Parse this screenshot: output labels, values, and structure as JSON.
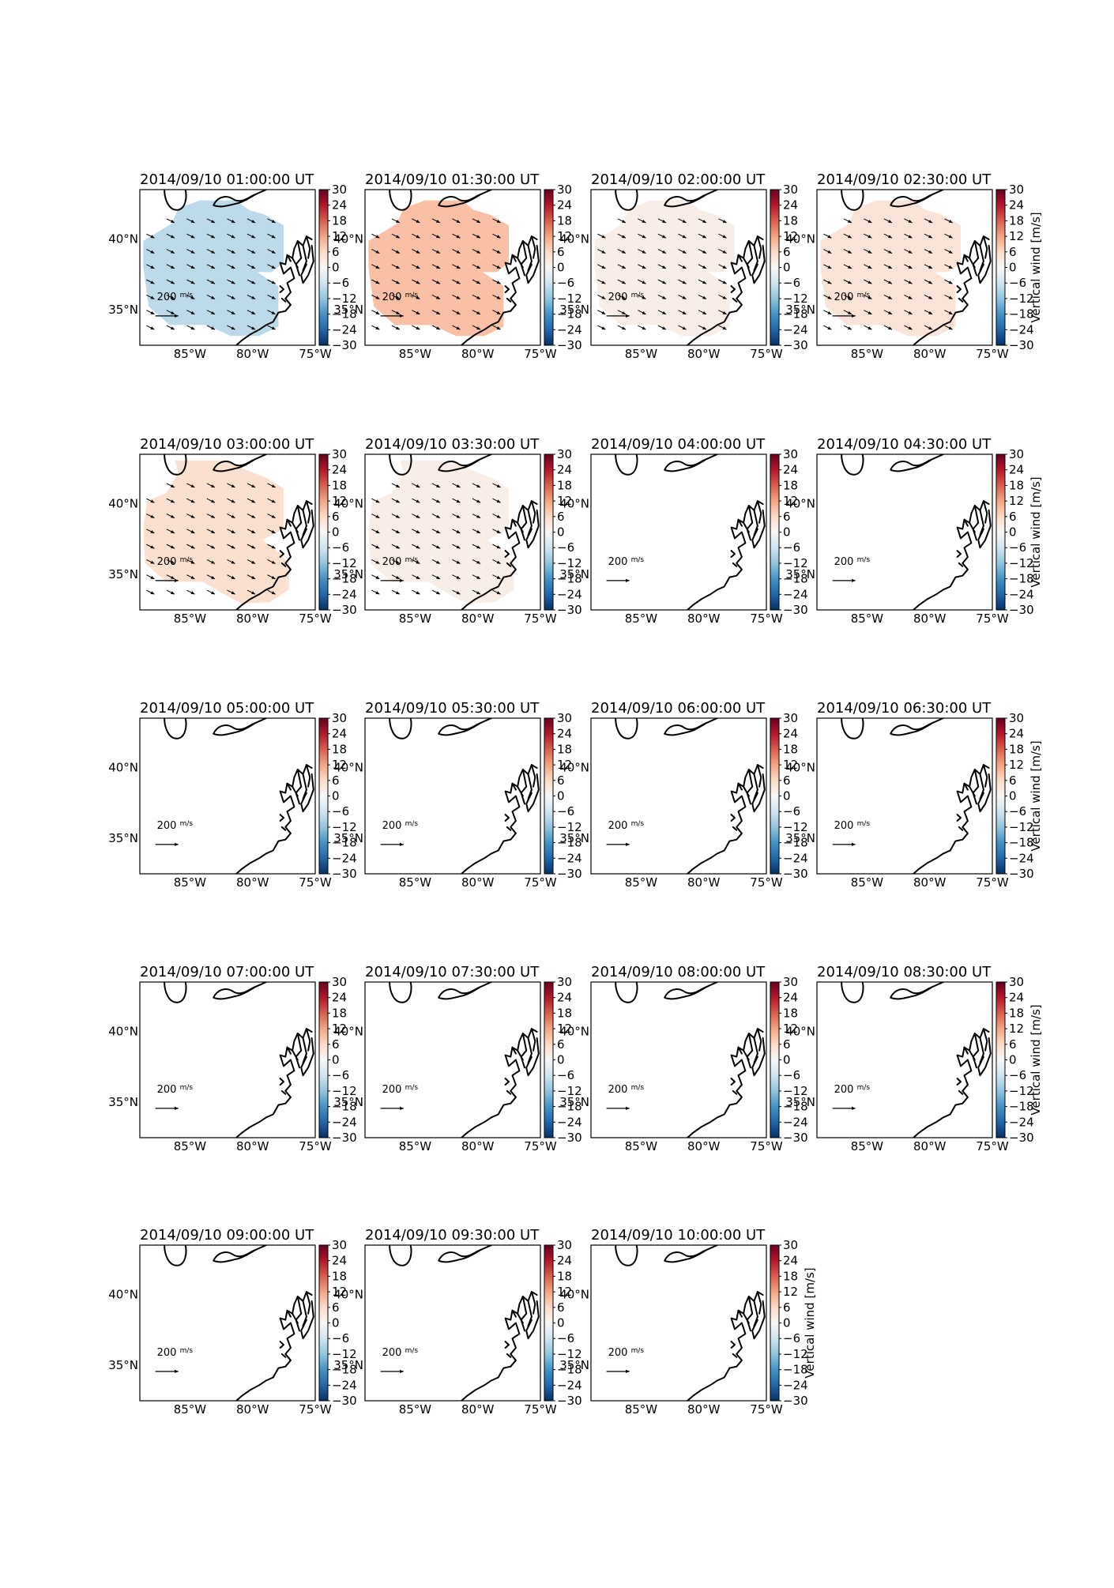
{
  "figure": {
    "colorbar": {
      "label": "Vertical wind [m/s]",
      "ticks": [
        30,
        24,
        18,
        12,
        6,
        0,
        -6,
        -12,
        -18,
        -24,
        -30
      ],
      "vmin": -30,
      "vmax": 30,
      "cmap": "RdBu_r"
    },
    "axes": {
      "x_ticks": [
        "85°W",
        "80°W",
        "75°W"
      ],
      "y_ticks": [
        "40°N",
        "35°N"
      ],
      "lon_range": [
        -89,
        -75
      ],
      "lat_range": [
        32.5,
        43.5
      ]
    },
    "quiver_key": {
      "value": "200",
      "unit_num": "m",
      "unit_den": "s"
    },
    "panels": [
      {
        "title": "2014/09/10 01:00:00 UT",
        "vertical_wind": -8,
        "shape": "A",
        "arrows": true
      },
      {
        "title": "2014/09/10 01:30:00 UT",
        "vertical_wind": 9,
        "shape": "A",
        "arrows": true
      },
      {
        "title": "2014/09/10 02:00:00 UT",
        "vertical_wind": 2,
        "shape": "A",
        "arrows": true
      },
      {
        "title": "2014/09/10 02:30:00 UT",
        "vertical_wind": 4,
        "shape": "A",
        "arrows": true
      },
      {
        "title": "2014/09/10 03:00:00 UT",
        "vertical_wind": 5,
        "shape": "B",
        "arrows": true
      },
      {
        "title": "2014/09/10 03:30:00 UT",
        "vertical_wind": 2,
        "shape": "B",
        "arrows": true
      },
      {
        "title": "2014/09/10 04:00:00 UT",
        "vertical_wind": null,
        "shape": null,
        "arrows": false
      },
      {
        "title": "2014/09/10 04:30:00 UT",
        "vertical_wind": null,
        "shape": null,
        "arrows": false
      },
      {
        "title": "2014/09/10 05:00:00 UT",
        "vertical_wind": null,
        "shape": null,
        "arrows": false
      },
      {
        "title": "2014/09/10 05:30:00 UT",
        "vertical_wind": null,
        "shape": null,
        "arrows": false
      },
      {
        "title": "2014/09/10 06:00:00 UT",
        "vertical_wind": null,
        "shape": null,
        "arrows": false
      },
      {
        "title": "2014/09/10 06:30:00 UT",
        "vertical_wind": null,
        "shape": null,
        "arrows": false
      },
      {
        "title": "2014/09/10 07:00:00 UT",
        "vertical_wind": null,
        "shape": null,
        "arrows": false
      },
      {
        "title": "2014/09/10 07:30:00 UT",
        "vertical_wind": null,
        "shape": null,
        "arrows": false
      },
      {
        "title": "2014/09/10 08:00:00 UT",
        "vertical_wind": null,
        "shape": null,
        "arrows": false
      },
      {
        "title": "2014/09/10 08:30:00 UT",
        "vertical_wind": null,
        "shape": null,
        "arrows": false
      },
      {
        "title": "2014/09/10 09:00:00 UT",
        "vertical_wind": null,
        "shape": null,
        "arrows": false
      },
      {
        "title": "2014/09/10 09:30:00 UT",
        "vertical_wind": null,
        "shape": null,
        "arrows": false
      },
      {
        "title": "2014/09/10 10:00:00 UT",
        "vertical_wind": null,
        "shape": null,
        "arrows": false
      }
    ]
  }
}
